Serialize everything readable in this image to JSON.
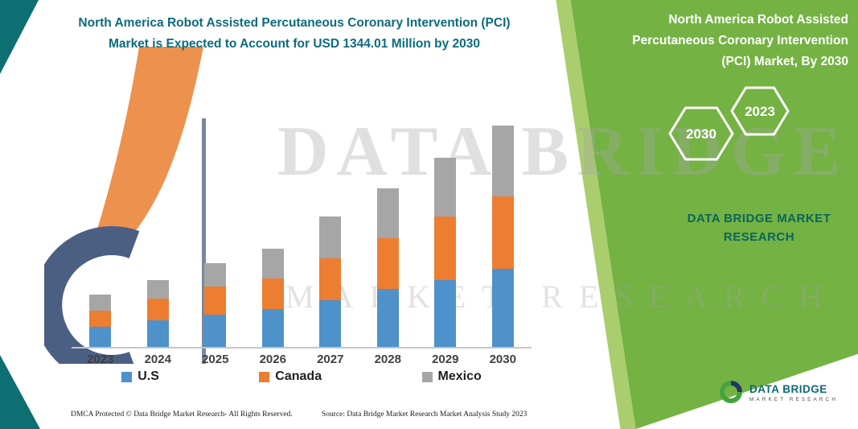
{
  "header": {
    "left_title": "North America Robot Assisted Percutaneous Coronary Intervention (PCI) Market is Expected to Account for USD 1344.01 Million by 2030",
    "right_title": "North America Robot Assisted Percutaneous Coronary Intervention (PCI) Market, By 2030"
  },
  "chart_data": {
    "type": "bar",
    "stacked": true,
    "title": "North America Robot Assisted Percutaneous Coronary Intervention (PCI) Market is Expected to Account for USD 1344.01 Million by 2030",
    "unit": "USD Million",
    "categories": [
      "2023",
      "2024",
      "2025",
      "2026",
      "2027",
      "2028",
      "2029",
      "2030"
    ],
    "series": [
      {
        "name": "U.S",
        "color": "#4E91CB",
        "values": [
          122,
          161,
          196,
          230,
          284,
          352,
          406,
          474.01
        ]
      },
      {
        "name": "Canada",
        "color": "#ED7D31",
        "values": [
          98,
          132,
          171,
          186,
          254,
          308,
          386,
          440
        ]
      },
      {
        "name": "Mexico",
        "color": "#A6A6A6",
        "values": [
          98,
          113,
          141,
          180,
          254,
          303,
          357,
          430
        ]
      }
    ],
    "totals": [
      318,
      406,
      508,
      596,
      792,
      963,
      1149,
      1344.01
    ],
    "total_2030": 1344.01,
    "y_axis_labeled": false,
    "grid": false,
    "legend_position": "bottom"
  },
  "side_panel": {
    "hexagons": [
      "2030",
      "2023"
    ],
    "brand_line1": "DATA BRIDGE MARKET",
    "brand_line2": "RESEARCH"
  },
  "watermark": {
    "line1": "DATA BRIDGE",
    "line2": "MARKET RESEARCH"
  },
  "footer": {
    "dmca": "DMCA Protected © Data Bridge Market Research-  All Rights Reserved.",
    "source": "Source: Data Bridge Market Research  Market Analysis Study 2023"
  },
  "logo": {
    "name": "DATA BRIDGE",
    "tagline": "MARKET RESEARCH"
  },
  "colors": {
    "us_blue": "#4E91CB",
    "canada_orange": "#ED7D31",
    "mexico_gray": "#A6A6A6",
    "accent_teal": "#0B6C7D",
    "panel_green": "#74B243",
    "corner_teal": "#0E6F72"
  }
}
